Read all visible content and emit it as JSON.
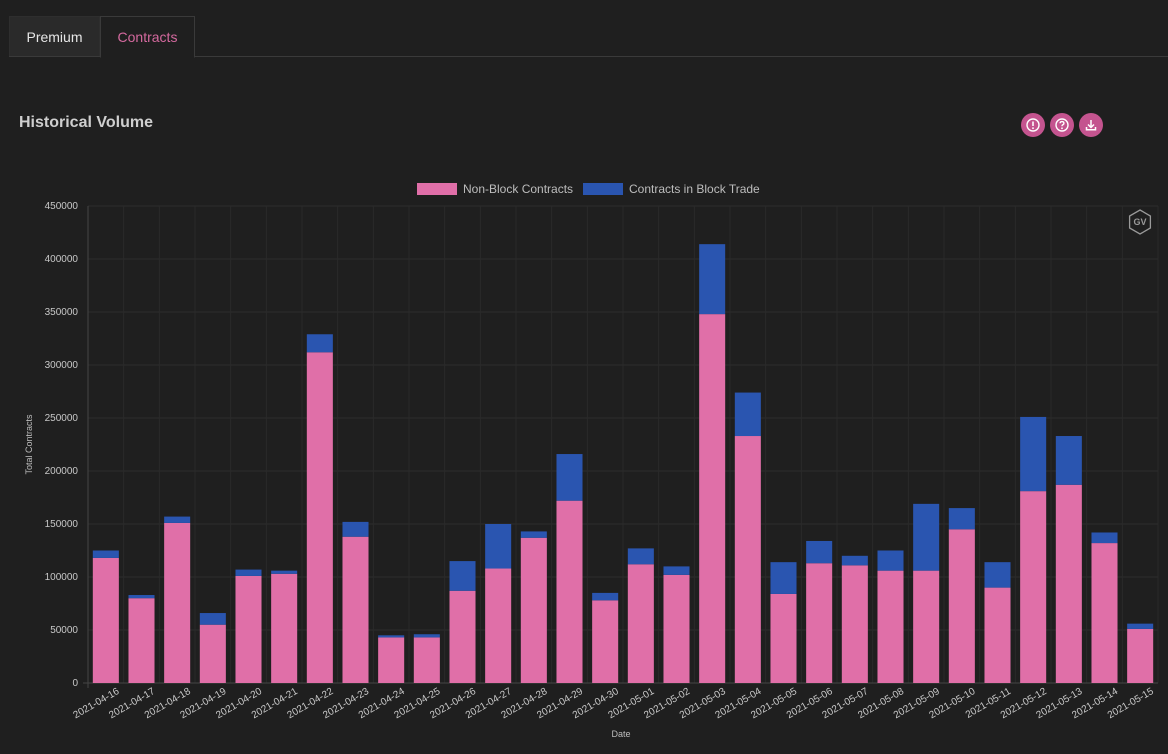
{
  "tabs": [
    {
      "label": "Premium",
      "active": false
    },
    {
      "label": "Contracts",
      "active": true
    }
  ],
  "title": "Historical Volume",
  "toolbar_icons": [
    "info-icon",
    "help-icon",
    "download-icon"
  ],
  "colors": {
    "accent": "#d4699e",
    "non_block": "#e06fa8",
    "block": "#2a55b0",
    "background": "#1f1f1f"
  },
  "watermark": "GV",
  "chart_data": {
    "type": "bar",
    "stacked": true,
    "title": "",
    "xlabel": "Date",
    "ylabel": "Total Contracts",
    "ylim": [
      0,
      450000
    ],
    "yticks": [
      0,
      50000,
      100000,
      150000,
      200000,
      250000,
      300000,
      350000,
      400000,
      450000
    ],
    "grid": true,
    "legend_position": "top-center",
    "categories": [
      "2021-04-16",
      "2021-04-17",
      "2021-04-18",
      "2021-04-19",
      "2021-04-20",
      "2021-04-21",
      "2021-04-22",
      "2021-04-23",
      "2021-04-24",
      "2021-04-25",
      "2021-04-26",
      "2021-04-27",
      "2021-04-28",
      "2021-04-29",
      "2021-04-30",
      "2021-05-01",
      "2021-05-02",
      "2021-05-03",
      "2021-05-04",
      "2021-05-05",
      "2021-05-06",
      "2021-05-07",
      "2021-05-08",
      "2021-05-09",
      "2021-05-10",
      "2021-05-11",
      "2021-05-12",
      "2021-05-13",
      "2021-05-14",
      "2021-05-15"
    ],
    "series": [
      {
        "name": "Non-Block Contracts",
        "color": "#e06fa8",
        "values": [
          118000,
          80000,
          151000,
          55000,
          101000,
          103000,
          312000,
          138000,
          43000,
          43000,
          87000,
          108000,
          137000,
          172000,
          78000,
          112000,
          102000,
          348000,
          233000,
          84000,
          113000,
          111000,
          106000,
          106000,
          145000,
          90000,
          181000,
          187000,
          132000,
          51000
        ]
      },
      {
        "name": "Contracts in Block Trade",
        "color": "#2a55b0",
        "values": [
          7000,
          3000,
          6000,
          11000,
          6000,
          3000,
          17000,
          14000,
          2000,
          3000,
          28000,
          42000,
          6000,
          44000,
          7000,
          15000,
          8000,
          66000,
          41000,
          30000,
          21000,
          9000,
          19000,
          63000,
          20000,
          24000,
          70000,
          46000,
          10000,
          5000
        ]
      }
    ]
  }
}
